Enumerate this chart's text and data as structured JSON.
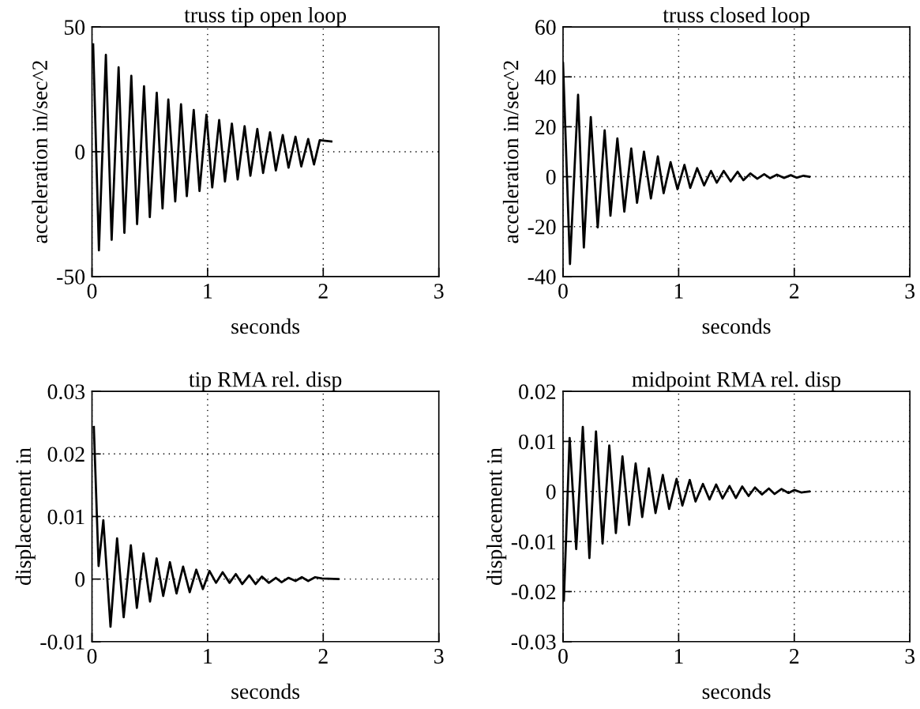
{
  "chart_data": [
    {
      "type": "line",
      "title": "truss tip open loop",
      "xlabel": "seconds",
      "ylabel": "acceleration in/sec^2",
      "xlim": [
        0,
        3
      ],
      "xticks": [
        0,
        1,
        2,
        3
      ],
      "ylim": [
        -50,
        50
      ],
      "yticks": [
        -50,
        0,
        50
      ],
      "grid": true,
      "line_style": "solid",
      "series": [
        {
          "color": "#000000",
          "x": [
            0.01,
            0.06,
            0.12,
            0.17,
            0.23,
            0.28,
            0.34,
            0.39,
            0.45,
            0.5,
            0.56,
            0.61,
            0.66,
            0.72,
            0.77,
            0.82,
            0.88,
            0.93,
            0.99,
            1.04,
            1.1,
            1.15,
            1.21,
            1.26,
            1.32,
            1.37,
            1.43,
            1.48,
            1.54,
            1.59,
            1.65,
            1.7,
            1.76,
            1.81,
            1.87,
            1.92,
            1.97,
            2.07
          ],
          "values": [
            43,
            -39.5,
            38.8,
            -35.3,
            33.8,
            -32.5,
            30.4,
            -29,
            26.2,
            -26.2,
            23.6,
            -22.7,
            20.9,
            -19.9,
            19,
            -17.8,
            16.7,
            -15.7,
            14.8,
            -14.3,
            12.7,
            -11.9,
            11.3,
            -11.1,
            10.2,
            -9.6,
            9.1,
            -8.5,
            7.8,
            -7.5,
            6.7,
            -6.4,
            6,
            -5.9,
            5.1,
            -5.1,
            4.6,
            4.1
          ]
        }
      ]
    },
    {
      "type": "line",
      "title": "truss closed loop",
      "xlabel": "seconds",
      "ylabel": "acceleration in/sec^2",
      "xlim": [
        0,
        3
      ],
      "xticks": [
        0,
        1,
        2,
        3
      ],
      "ylim": [
        -40,
        60
      ],
      "yticks": [
        -40,
        -20,
        0,
        20,
        40,
        60
      ],
      "grid": true,
      "line_style": "solid",
      "series": [
        {
          "color": "#000000",
          "x": [
            0,
            0.06,
            0.13,
            0.18,
            0.24,
            0.3,
            0.36,
            0.41,
            0.47,
            0.53,
            0.59,
            0.64,
            0.7,
            0.76,
            0.82,
            0.87,
            0.93,
            0.99,
            1.05,
            1.1,
            1.16,
            1.22,
            1.28,
            1.33,
            1.39,
            1.45,
            1.51,
            1.56,
            1.62,
            1.68,
            1.74,
            1.79,
            1.85,
            1.91,
            1.97,
            2.02,
            2.08,
            2.13
          ],
          "values": [
            45.5,
            -35,
            32.8,
            -28.4,
            23.9,
            -20.3,
            18.6,
            -15.6,
            15.3,
            -14,
            11.3,
            -10.5,
            10,
            -8.7,
            8.1,
            -6.6,
            5.8,
            -5,
            4.7,
            -4.5,
            3.4,
            -3.5,
            2.3,
            -2.4,
            2.3,
            -1.9,
            2,
            -1.4,
            1.3,
            -0.8,
            1,
            -0.6,
            0.8,
            -0.5,
            0.6,
            -0.4,
            0.4,
            0
          ]
        }
      ]
    },
    {
      "type": "line",
      "title": "tip RMA rel. disp",
      "xlabel": "seconds",
      "ylabel": "displacement in",
      "xlim": [
        0,
        3
      ],
      "xticks": [
        0,
        1,
        2,
        3
      ],
      "ylim": [
        -0.01,
        0.03
      ],
      "yticks": [
        -0.01,
        0,
        0.01,
        0.02,
        0.03
      ],
      "grid": true,
      "line_style": "solid",
      "series": [
        {
          "color": "#000000",
          "x": [
            0.016,
            0.057,
            0.098,
            0.16,
            0.217,
            0.274,
            0.336,
            0.388,
            0.445,
            0.502,
            0.559,
            0.616,
            0.674,
            0.731,
            0.788,
            0.845,
            0.902,
            0.959,
            1.016,
            1.073,
            1.13,
            1.19,
            1.244,
            1.3,
            1.36,
            1.415,
            1.47,
            1.53,
            1.59,
            1.64,
            1.7,
            1.76,
            1.815,
            1.87,
            1.93,
            1.99,
            2.13
          ],
          "values": [
            0.0243,
            0.0021,
            0.0094,
            -0.0076,
            0.0065,
            -0.0061,
            0.0054,
            -0.0046,
            0.0041,
            -0.0036,
            0.0033,
            -0.0027,
            0.0027,
            -0.0023,
            0.002,
            -0.0021,
            0.0015,
            -0.0016,
            0.0013,
            -0.0006,
            0.0011,
            -0.0006,
            0.0008,
            -0.0008,
            0.0006,
            -0.0008,
            0.0004,
            -0.0006,
            0.0002,
            -0.0005,
            0.0002,
            -0.0003,
            0.0003,
            -0.0003,
            0.0003,
            0.0001,
            0
          ]
        }
      ]
    },
    {
      "type": "line",
      "title": "midpoint RMA rel. disp",
      "xlabel": "seconds",
      "ylabel": "displacement in",
      "xlim": [
        0,
        3
      ],
      "xticks": [
        0,
        1,
        2,
        3
      ],
      "ylim": [
        -0.03,
        0.02
      ],
      "yticks": [
        -0.03,
        -0.02,
        -0.01,
        0,
        0.01,
        0.02
      ],
      "grid": true,
      "line_style": "solid",
      "series": [
        {
          "color": "#000000",
          "x": [
            0.007,
            0.057,
            0.114,
            0.171,
            0.228,
            0.285,
            0.342,
            0.4,
            0.457,
            0.514,
            0.571,
            0.628,
            0.685,
            0.742,
            0.8,
            0.863,
            0.918,
            0.982,
            1.032,
            1.096,
            1.146,
            1.21,
            1.267,
            1.324,
            1.38,
            1.44,
            1.495,
            1.55,
            1.605,
            1.66,
            1.72,
            1.78,
            1.83,
            1.89,
            1.95,
            2.0,
            2.06,
            2.13
          ],
          "values": [
            -0.0218,
            0.0107,
            -0.0115,
            0.0129,
            -0.0133,
            0.012,
            -0.0104,
            0.0092,
            -0.0083,
            0.007,
            -0.0067,
            0.0056,
            -0.0051,
            0.0046,
            -0.0043,
            0.0033,
            -0.0035,
            0.0025,
            -0.0028,
            0.0023,
            -0.002,
            0.0015,
            -0.0016,
            0.0014,
            -0.0014,
            0.0011,
            -0.0013,
            0.001,
            -0.0009,
            0.0008,
            -0.0006,
            0.0006,
            -0.0005,
            0.0005,
            -0.0003,
            0.0003,
            -0.0002,
            0
          ]
        }
      ]
    }
  ]
}
